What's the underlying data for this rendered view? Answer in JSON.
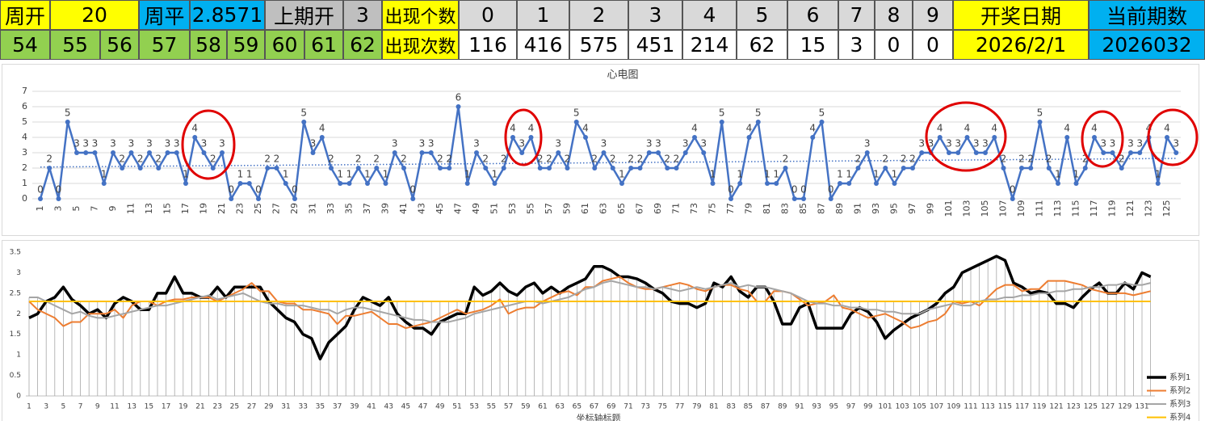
{
  "table": {
    "rows": [
      [
        "周开",
        20,
        "周平",
        2.8571,
        "上期开",
        3,
        "出现个数",
        0,
        1,
        2,
        3,
        4,
        5,
        6,
        7,
        8,
        9,
        "开奖日期",
        "当前期数"
      ],
      [
        54,
        55,
        56,
        57,
        58,
        59,
        60,
        61,
        62,
        "出现次数",
        116,
        416,
        575,
        451,
        214,
        62,
        15,
        3,
        0,
        0,
        "2026/2/1",
        2026032
      ]
    ]
  },
  "chart_data": [
    {
      "type": "line",
      "title": "心电图",
      "data_labels": true,
      "trendline": "linear",
      "grid": true,
      "categories": [
        1,
        null,
        3,
        null,
        5,
        null,
        7,
        null,
        9,
        null,
        11,
        null,
        13,
        null,
        15,
        null,
        17,
        null,
        19,
        null,
        21,
        null,
        23,
        null,
        25,
        null,
        27,
        null,
        29,
        null,
        31,
        null,
        33,
        null,
        35,
        null,
        37,
        null,
        39,
        null,
        41,
        null,
        43,
        null,
        45,
        null,
        47,
        null,
        49,
        null,
        51,
        null,
        53,
        null,
        55,
        null,
        57,
        null,
        59,
        null,
        61,
        null,
        63,
        null,
        65,
        null,
        67,
        null,
        69,
        null,
        71,
        null,
        73,
        null,
        75,
        null,
        77,
        null,
        79,
        null,
        81,
        null,
        83,
        null,
        85,
        null,
        87,
        null,
        89,
        null,
        91,
        null,
        93,
        null,
        95,
        null,
        97,
        null,
        99,
        null,
        101,
        null,
        103,
        null,
        105,
        null,
        107,
        null,
        109,
        null,
        111,
        null,
        113,
        null,
        115,
        null,
        117,
        null,
        119,
        null,
        121,
        null,
        123,
        null,
        125,
        null
      ],
      "series": [
        {
          "name": "心电图",
          "color": "#4472c4",
          "values": [
            0,
            2,
            0,
            5,
            3,
            3,
            3,
            1,
            3,
            2,
            3,
            2,
            3,
            2,
            3,
            3,
            1,
            4,
            3,
            2,
            3,
            0,
            1,
            1,
            0,
            2,
            2,
            1,
            0,
            5,
            3,
            4,
            2,
            1,
            1,
            2,
            1,
            2,
            1,
            3,
            2,
            0,
            3,
            3,
            2,
            2,
            6,
            1,
            3,
            2,
            1,
            2,
            4,
            3,
            4,
            2,
            2,
            3,
            2,
            5,
            4,
            2,
            3,
            2,
            1,
            2,
            2,
            3,
            3,
            2,
            2,
            3,
            4,
            3,
            1,
            5,
            0,
            1,
            4,
            5,
            1,
            1,
            2,
            0,
            0,
            4,
            5,
            0,
            1,
            1,
            2,
            3,
            1,
            2,
            1,
            2,
            2,
            3,
            3,
            4,
            3,
            3,
            4,
            3,
            3,
            4,
            2,
            0,
            2,
            2,
            5,
            2,
            1,
            4,
            1,
            2,
            4,
            3,
            3,
            2,
            3,
            3,
            4,
            1,
            4,
            3
          ]
        }
      ],
      "ylim": [
        0,
        7
      ],
      "yticks": [
        0,
        1,
        2,
        3,
        4,
        5,
        6,
        7
      ]
    },
    {
      "type": "line",
      "x_label": "坐标轴标题",
      "legend": "lower right",
      "drop_lines": true,
      "grid": false,
      "categories": [
        1,
        null,
        3,
        null,
        5,
        null,
        7,
        null,
        9,
        null,
        11,
        null,
        13,
        null,
        15,
        null,
        17,
        null,
        19,
        null,
        21,
        null,
        23,
        null,
        25,
        null,
        27,
        null,
        29,
        null,
        31,
        null,
        33,
        null,
        35,
        null,
        37,
        null,
        39,
        null,
        41,
        null,
        43,
        null,
        45,
        null,
        47,
        null,
        49,
        null,
        51,
        null,
        53,
        null,
        55,
        null,
        57,
        null,
        59,
        null,
        61,
        null,
        63,
        null,
        65,
        null,
        67,
        null,
        69,
        null,
        71,
        null,
        73,
        null,
        75,
        null,
        77,
        null,
        79,
        null,
        81,
        null,
        83,
        null,
        85,
        null,
        87,
        null,
        89,
        null,
        91,
        null,
        93,
        null,
        95,
        null,
        97,
        null,
        99,
        null,
        101,
        null,
        103,
        null,
        105,
        null,
        107,
        null,
        109,
        null,
        111,
        null,
        113,
        null,
        115,
        null,
        117,
        null,
        119,
        null,
        121,
        null,
        123,
        null,
        125,
        null,
        127,
        null,
        129,
        null,
        131,
        null
      ],
      "series": [
        {
          "name": "系列1",
          "color": "#000000",
          "values": [
            1.9,
            2.0,
            2.3,
            2.4,
            2.65,
            2.35,
            2.2,
            2.0,
            2.1,
            1.9,
            2.25,
            2.4,
            2.3,
            2.1,
            2.1,
            2.5,
            2.5,
            2.9,
            2.5,
            2.5,
            2.4,
            2.4,
            2.65,
            2.4,
            2.65,
            2.65,
            2.65,
            2.65,
            2.3,
            2.1,
            1.9,
            1.8,
            1.5,
            1.4,
            0.9,
            1.3,
            1.5,
            1.7,
            2.1,
            2.4,
            2.3,
            2.2,
            2.4,
            2.0,
            1.8,
            1.65,
            1.65,
            1.5,
            1.8,
            1.9,
            2.0,
            2.0,
            2.65,
            2.45,
            2.55,
            2.75,
            2.55,
            2.45,
            2.65,
            2.75,
            2.5,
            2.65,
            2.5,
            2.65,
            2.75,
            2.85,
            3.15,
            3.15,
            3.05,
            2.9,
            2.9,
            2.85,
            2.75,
            2.6,
            2.5,
            2.3,
            2.25,
            2.25,
            2.15,
            2.25,
            2.75,
            2.65,
            2.9,
            2.55,
            2.4,
            2.65,
            2.65,
            2.3,
            1.75,
            1.75,
            2.15,
            2.25,
            1.65,
            1.65,
            1.65,
            1.65,
            2.0,
            2.15,
            2.05,
            1.8,
            1.4,
            1.6,
            1.75,
            1.9,
            2.0,
            2.1,
            2.25,
            2.5,
            2.65,
            3.0,
            3.1,
            3.2,
            3.3,
            3.4,
            3.3,
            2.75,
            2.65,
            2.5,
            2.55,
            2.5,
            2.25,
            2.25,
            2.15,
            2.4,
            2.6,
            2.75,
            2.5,
            2.5,
            2.75,
            2.6,
            3.0,
            2.9
          ]
        },
        {
          "name": "系列2",
          "color": "#ed7d31",
          "values": [
            2.3,
            2.1,
            2.0,
            1.9,
            1.7,
            1.8,
            1.8,
            2.0,
            2.0,
            2.0,
            2.1,
            1.9,
            2.2,
            2.3,
            2.3,
            2.2,
            2.3,
            2.35,
            2.35,
            2.4,
            2.4,
            2.4,
            2.3,
            2.4,
            2.5,
            2.6,
            2.75,
            2.55,
            2.55,
            2.3,
            2.25,
            2.25,
            2.1,
            2.1,
            2.05,
            2.0,
            1.75,
            1.95,
            1.95,
            2.0,
            2.05,
            1.9,
            1.75,
            1.75,
            1.65,
            1.7,
            1.75,
            1.8,
            1.9,
            2.0,
            2.1,
            2.0,
            2.05,
            2.1,
            2.2,
            2.35,
            2.0,
            2.1,
            2.15,
            2.15,
            2.3,
            2.4,
            2.5,
            2.55,
            2.45,
            2.65,
            2.65,
            2.8,
            2.85,
            2.9,
            2.75,
            2.65,
            2.6,
            2.6,
            2.65,
            2.7,
            2.75,
            2.7,
            2.6,
            2.55,
            2.65,
            2.7,
            2.7,
            2.6,
            2.55,
            2.3,
            2.3,
            2.55,
            2.55,
            2.5,
            2.35,
            2.2,
            2.25,
            2.3,
            2.45,
            2.15,
            2.1,
            2.0,
            1.9,
            1.95,
            2.0,
            1.9,
            1.8,
            1.65,
            1.7,
            1.8,
            1.85,
            2.0,
            2.3,
            2.25,
            2.3,
            2.2,
            2.4,
            2.6,
            2.7,
            2.7,
            2.55,
            2.6,
            2.6,
            2.8,
            2.8,
            2.8,
            2.75,
            2.7,
            2.6,
            2.55,
            2.5,
            2.5,
            2.5,
            2.45,
            2.5,
            2.55
          ]
        },
        {
          "name": "系列3",
          "color": "#a5a5a5",
          "values": [
            2.4,
            2.4,
            2.3,
            2.2,
            2.1,
            2.0,
            2.05,
            1.95,
            1.9,
            1.9,
            1.95,
            2.0,
            2.05,
            2.1,
            2.15,
            2.2,
            2.2,
            2.25,
            2.3,
            2.35,
            2.4,
            2.45,
            2.35,
            2.4,
            2.45,
            2.5,
            2.4,
            2.3,
            2.25,
            2.25,
            2.2,
            2.2,
            2.2,
            2.15,
            2.1,
            2.1,
            2.0,
            2.1,
            2.15,
            2.15,
            2.1,
            2.05,
            2.0,
            1.95,
            1.9,
            1.85,
            1.85,
            1.8,
            1.8,
            1.8,
            1.85,
            1.9,
            2.0,
            2.05,
            2.1,
            2.15,
            2.2,
            2.25,
            2.3,
            2.3,
            2.25,
            2.3,
            2.35,
            2.4,
            2.5,
            2.6,
            2.65,
            2.75,
            2.8,
            2.75,
            2.7,
            2.65,
            2.65,
            2.6,
            2.65,
            2.6,
            2.55,
            2.6,
            2.65,
            2.6,
            2.65,
            2.7,
            2.75,
            2.65,
            2.7,
            2.65,
            2.65,
            2.6,
            2.55,
            2.5,
            2.4,
            2.3,
            2.25,
            2.25,
            2.2,
            2.2,
            2.15,
            2.15,
            2.1,
            2.1,
            2.05,
            2.05,
            2.0,
            2.0,
            2.0,
            2.1,
            2.15,
            2.2,
            2.25,
            2.2,
            2.2,
            2.3,
            2.35,
            2.35,
            2.4,
            2.4,
            2.45,
            2.45,
            2.5,
            2.5,
            2.55,
            2.55,
            2.6,
            2.6,
            2.65,
            2.65,
            2.7,
            2.7,
            2.75,
            2.7,
            2.7,
            2.75
          ]
        },
        {
          "name": "系列4",
          "color": "#ffc000",
          "values": [
            2.3,
            2.3,
            2.3,
            2.3,
            2.3,
            2.3,
            2.3,
            2.3,
            2.3,
            2.3,
            2.3,
            2.3,
            2.3,
            2.3,
            2.3,
            2.3,
            2.3,
            2.3,
            2.3,
            2.3,
            2.3,
            2.3,
            2.3,
            2.3,
            2.3,
            2.3,
            2.3,
            2.3,
            2.3,
            2.3,
            2.3,
            2.3,
            2.3,
            2.3,
            2.3,
            2.3,
            2.3,
            2.3,
            2.3,
            2.3,
            2.3,
            2.3,
            2.3,
            2.3,
            2.3,
            2.3,
            2.3,
            2.3,
            2.3,
            2.3,
            2.3,
            2.3,
            2.3,
            2.3,
            2.3,
            2.3,
            2.3,
            2.3,
            2.3,
            2.3,
            2.3,
            2.3,
            2.3,
            2.3,
            2.3,
            2.3,
            2.3,
            2.3,
            2.3,
            2.3,
            2.3,
            2.3,
            2.3,
            2.3,
            2.3,
            2.3,
            2.3,
            2.3,
            2.3,
            2.3,
            2.3,
            2.3,
            2.3,
            2.3,
            2.3,
            2.3,
            2.3,
            2.3,
            2.3,
            2.3,
            2.3,
            2.3,
            2.3,
            2.3,
            2.3,
            2.3,
            2.3,
            2.3,
            2.3,
            2.3,
            2.3,
            2.3,
            2.3,
            2.3,
            2.3,
            2.3,
            2.3,
            2.3,
            2.3,
            2.3,
            2.3,
            2.3,
            2.3,
            2.3,
            2.3,
            2.3,
            2.3,
            2.3,
            2.3,
            2.3,
            2.3,
            2.3,
            2.3,
            2.3,
            2.3,
            2.3,
            2.3,
            2.3,
            2.3,
            2.3,
            2.3,
            2.3
          ]
        }
      ],
      "ylim": [
        0,
        3.5
      ],
      "yticks": [
        0,
        0.5,
        1,
        1.5,
        2,
        2.5,
        3,
        3.5
      ]
    }
  ]
}
